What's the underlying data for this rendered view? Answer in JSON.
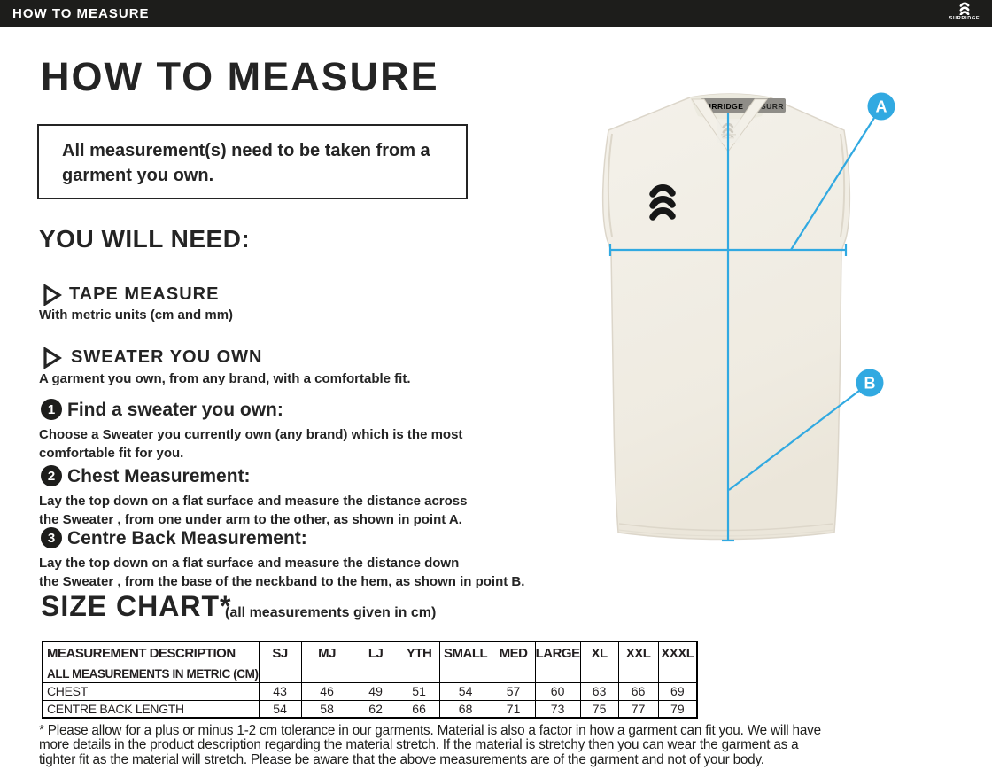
{
  "colors": {
    "topbar_bg": "#1d1d1b",
    "heading_text": "#242424",
    "accent_blue": "#31a9e1",
    "garment_cream": "#f0ece3",
    "neckband_gray": "#8f8d88"
  },
  "topbar": {
    "title": "HOW TO MEASURE",
    "logo_text": "SURRIDGE"
  },
  "page": {
    "heading": "HOW TO MEASURE",
    "notice": [
      "All measurement(s) need to be taken from a",
      "garment you own."
    ],
    "you_will_need": {
      "heading": "YOU WILL NEED:",
      "items": [
        {
          "title": "TAPE MEASURE",
          "desc": "With metric units (cm and mm)"
        },
        {
          "title": "SWEATER YOU OWN",
          "desc": "A garment you own, from any brand, with a comfortable fit."
        }
      ]
    },
    "steps": [
      {
        "num": "1",
        "title": "Find a sweater you own:",
        "body": [
          "Choose a Sweater you currently own (any brand) which is the most",
          "comfortable fit for you."
        ]
      },
      {
        "num": "2",
        "title": "Chest Measurement:",
        "body": [
          "Lay the top down on a flat surface and measure the distance across",
          "the Sweater , from one under arm to the other, as shown in point A."
        ]
      },
      {
        "num": "3",
        "title": "Centre Back Measurement:",
        "body": [
          "Lay the top down on a flat surface and measure the distance down",
          "the Sweater , from the base of the neckband to the hem, as shown in point B."
        ]
      }
    ],
    "size_chart": {
      "heading": "SIZE CHART*",
      "subheading": "(all measurements given in cm)",
      "columns": [
        "MEASUREMENT DESCRIPTION",
        "SJ",
        "MJ",
        "LJ",
        "YTH",
        "SMALL",
        "MED",
        "LARGE",
        "XL",
        "XXL",
        "XXXL"
      ],
      "rows": [
        {
          "label": "ALL MEASUREMENTS IN METRIC (CM)",
          "bold": true,
          "values": [
            "",
            "",
            "",
            "",
            "",
            "",
            "",
            "",
            "",
            ""
          ]
        },
        {
          "label": "CHEST",
          "bold": false,
          "values": [
            "43",
            "46",
            "49",
            "51",
            "54",
            "57",
            "60",
            "63",
            "66",
            "69"
          ]
        },
        {
          "label": "CENTRE BACK LENGTH",
          "bold": false,
          "values": [
            "54",
            "58",
            "62",
            "66",
            "68",
            "71",
            "73",
            "75",
            "77",
            "79"
          ]
        }
      ]
    },
    "footnote": [
      "* Please allow for a plus or minus 1-2 cm tolerance in our garments. Material is also a factor in how a garment can fit you. We will have",
      "more details in the product description regarding the material stretch.  If the material is stretchy then you can wear the garment as a",
      "tighter fit as the material will stretch.  Please be aware that the above measurements are of the garment and not of your body."
    ]
  },
  "diagram": {
    "neck_label": "SURRIDGE",
    "neck_label_partial": "SURR",
    "point_a": "A",
    "point_b": "B"
  }
}
